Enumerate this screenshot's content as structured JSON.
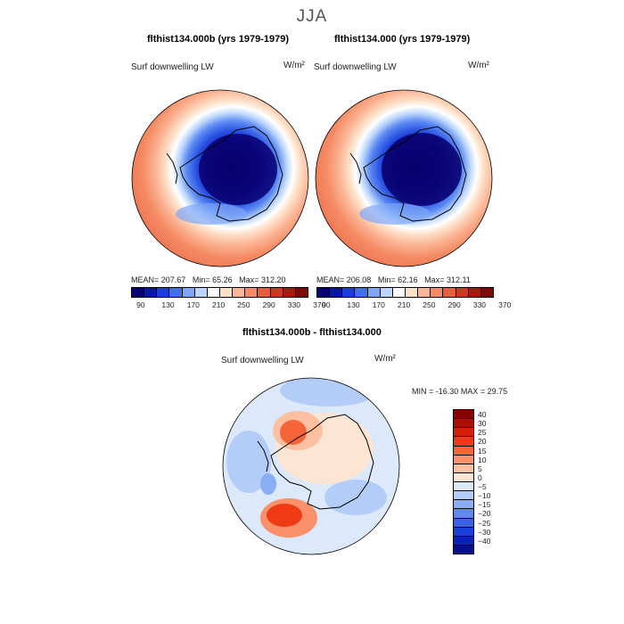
{
  "season": "JJA",
  "panels": [
    {
      "title": "flthist134.000b (yrs 1979-1979)",
      "variable": "Surf downwelling LW",
      "units": "W/m²",
      "stats": {
        "mean_label": "MEAN=",
        "mean": "207.67",
        "min_label": "Min=",
        "min": "65.26",
        "max_label": "Max=",
        "max": "312.20"
      }
    },
    {
      "title": "flthist134.000 (yrs 1979-1979)",
      "variable": "Surf downwelling LW",
      "units": "W/m²",
      "stats": {
        "mean_label": "MEAN=",
        "mean": "206.08",
        "min_label": "Min=",
        "min": "62.16",
        "max_label": "Max=",
        "max": "312.11"
      }
    }
  ],
  "diff": {
    "title": "flthist134.000b - flthist134.000",
    "variable": "Surf downwelling LW",
    "units": "W/m²",
    "stats": {
      "min_label": "MIN =",
      "min": "-16.30",
      "max_label": "MAX =",
      "max": "29.75"
    }
  },
  "colorbar_abs": {
    "colors": [
      "#08006e",
      "#0a17a8",
      "#1a3fd8",
      "#3f6ef0",
      "#7ea6f6",
      "#bcd6fb",
      "#ffffff",
      "#fde0c8",
      "#fbb493",
      "#f48a63",
      "#e85e3b",
      "#c83a1f",
      "#a31d0e",
      "#7a0a06"
    ],
    "ticks": [
      "90",
      "130",
      "170",
      "210",
      "250",
      "290",
      "330",
      "370"
    ]
  },
  "colorbar_diff": {
    "colors": [
      "#8a0000",
      "#b10e00",
      "#d4200a",
      "#ee3b15",
      "#f6653a",
      "#fa916a",
      "#fcbfa0",
      "#fde5d3",
      "#dce9fb",
      "#b4cdf8",
      "#8aaef3",
      "#6188ec",
      "#3a63e4",
      "#1a3fd6",
      "#0a22b4",
      "#06108a"
    ],
    "ticks": [
      "40",
      "30",
      "25",
      "20",
      "15",
      "10",
      "5",
      "0",
      "−5",
      "−10",
      "−15",
      "−20",
      "−25",
      "−30",
      "−40"
    ]
  },
  "chart_data": [
    {
      "type": "heatmap",
      "title": "flthist134.000b (yrs 1979-1979)",
      "field": "Surf downwelling LW",
      "units": "W/m²",
      "projection": "south polar stereographic",
      "mean": 207.67,
      "min": 65.26,
      "max": 312.2,
      "levels": [
        90,
        110,
        130,
        150,
        170,
        190,
        210,
        230,
        250,
        270,
        290,
        310,
        330,
        350,
        370
      ]
    },
    {
      "type": "heatmap",
      "title": "flthist134.000 (yrs 1979-1979)",
      "field": "Surf downwelling LW",
      "units": "W/m²",
      "projection": "south polar stereographic",
      "mean": 206.08,
      "min": 62.16,
      "max": 312.11,
      "levels": [
        90,
        110,
        130,
        150,
        170,
        190,
        210,
        230,
        250,
        270,
        290,
        310,
        330,
        350,
        370
      ]
    },
    {
      "type": "heatmap",
      "title": "flthist134.000b - flthist134.000",
      "field": "Surf downwelling LW",
      "units": "W/m²",
      "projection": "south polar stereographic",
      "min": -16.3,
      "max": 29.75,
      "levels": [
        -40,
        -30,
        -25,
        -20,
        -15,
        -10,
        -5,
        0,
        5,
        10,
        15,
        20,
        25,
        30,
        40
      ]
    }
  ]
}
